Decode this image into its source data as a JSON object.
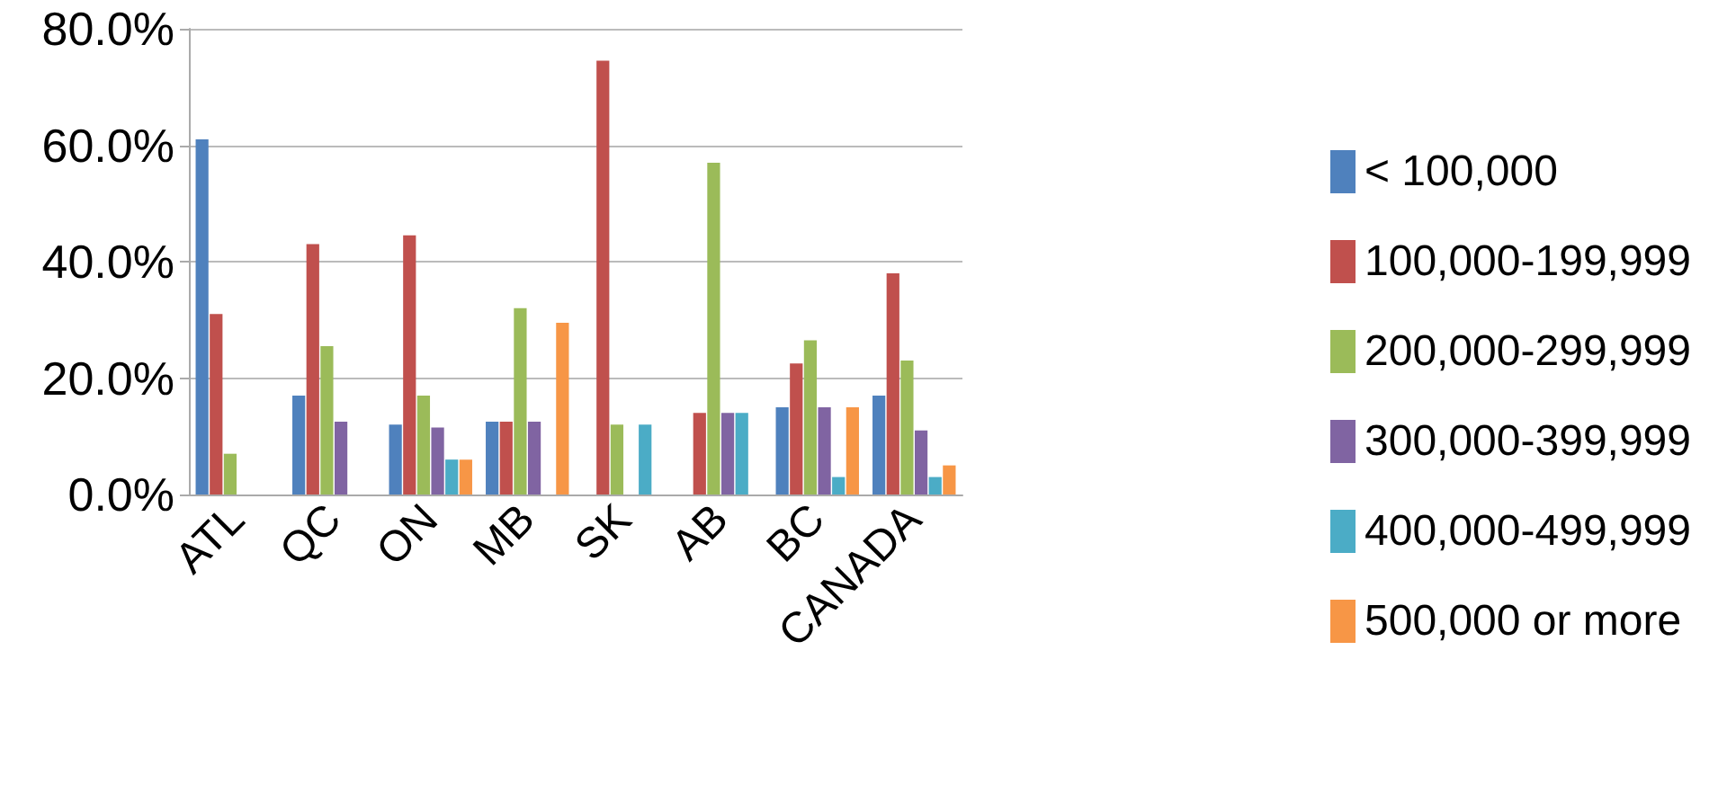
{
  "chart_data": {
    "type": "bar",
    "categories": [
      "ATL",
      "QC",
      "ON",
      "MB",
      "SK",
      "AB",
      "BC",
      "CANADA"
    ],
    "series": [
      {
        "name": "< 100,000",
        "color": "#4f81bd",
        "values": [
          61,
          17,
          12,
          12.5,
          0,
          0,
          15,
          17
        ]
      },
      {
        "name": "100,000-199,999",
        "color": "#c0504d",
        "values": [
          31,
          43,
          44.5,
          12.5,
          74.5,
          14,
          22.5,
          38
        ]
      },
      {
        "name": "200,000-299,999",
        "color": "#9bbb59",
        "values": [
          7,
          25.5,
          17,
          32,
          12,
          57,
          26.5,
          23
        ]
      },
      {
        "name": "300,000-399,999",
        "color": "#8064a2",
        "values": [
          0,
          12.5,
          11.5,
          12.5,
          0,
          14,
          15,
          11
        ]
      },
      {
        "name": "400,000-499,999",
        "color": "#4bacc6",
        "values": [
          0,
          0,
          6,
          0,
          12,
          14,
          3,
          3
        ]
      },
      {
        "name": "500,000 or more",
        "color": "#f79646",
        "values": [
          0,
          0,
          6,
          29.5,
          0,
          0,
          15,
          5
        ]
      }
    ],
    "ylim": [
      0,
      80
    ],
    "yticks": [
      {
        "value": 0,
        "label": "0.0%"
      },
      {
        "value": 20,
        "label": "20.0%"
      },
      {
        "value": 40,
        "label": "40.0%"
      },
      {
        "value": 60,
        "label": "60.0%"
      },
      {
        "value": 80,
        "label": "80.0%"
      }
    ],
    "grid": "y",
    "legend": "right"
  }
}
